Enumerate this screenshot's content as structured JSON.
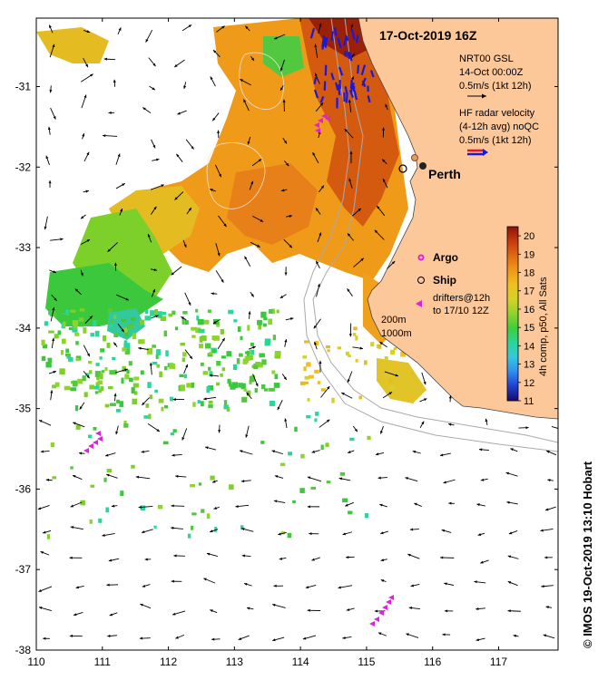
{
  "map": {
    "title": "17-Oct-2019 16Z",
    "credit": "© IMOS 19-Oct-2019 13:10 Hobart",
    "city": {
      "name": "Perth",
      "lon": 115.86,
      "lat": -31.95
    },
    "lon_range": [
      110,
      117.9
    ],
    "lat_range": [
      -38,
      -30.15
    ],
    "x_ticks": [
      {
        "v": 110,
        "label": "110"
      },
      {
        "v": 111,
        "label": "111"
      },
      {
        "v": 112,
        "label": "112"
      },
      {
        "v": 113,
        "label": "113"
      },
      {
        "v": 114,
        "label": "114"
      },
      {
        "v": 115,
        "label": "115"
      },
      {
        "v": 116,
        "label": "116"
      },
      {
        "v": 117,
        "label": "117"
      }
    ],
    "y_ticks": [
      {
        "v": -31,
        "label": "-31"
      },
      {
        "v": -32,
        "label": "-32"
      },
      {
        "v": -33,
        "label": "-33"
      },
      {
        "v": -34,
        "label": "-34"
      },
      {
        "v": -35,
        "label": "-35"
      },
      {
        "v": -36,
        "label": "-36"
      },
      {
        "v": -37,
        "label": "-37"
      },
      {
        "v": -38,
        "label": "-38"
      }
    ],
    "current_legend": {
      "line1": "NRT00 GSL",
      "line2": "14-Oct 00:00Z",
      "line3": "0.5m/s (1kt 12h)"
    },
    "radar_legend": {
      "line1": "HF radar velocity",
      "line2": "(4-12h avg) noQC",
      "line3": "0.5m/s (1kt 12h)"
    },
    "markers_legend": {
      "argo": "Argo",
      "ship": "Ship",
      "drifters_line1": "drifters@12h",
      "drifters_line2": "to 17/10 12Z"
    },
    "isobaths": {
      "label1": "200m",
      "label2": "1000m"
    },
    "colorbar": {
      "label": "4h comp, p50, All Sats",
      "min": 11,
      "max": 20.5,
      "ticks": [
        "11",
        "12",
        "13",
        "14",
        "15",
        "16",
        "17",
        "18",
        "19",
        "20"
      ],
      "colors": [
        "#1a0a6e",
        "#1f3fd0",
        "#2f8ff0",
        "#34c8e0",
        "#2ad69a",
        "#3bcf3b",
        "#8fd42a",
        "#d4d228",
        "#f0c020",
        "#f09818",
        "#e06a12",
        "#c83a0c",
        "#8a1404"
      ]
    },
    "colors": {
      "land": "#fcc89a",
      "radar_red": "#e8142a",
      "radar_blue": "#1818e0",
      "drifter": "#e020e0"
    }
  }
}
